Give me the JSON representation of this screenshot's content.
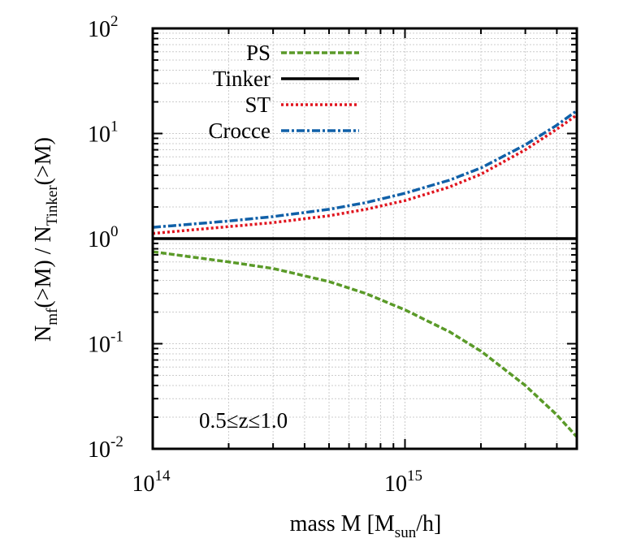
{
  "chart_data": {
    "type": "line",
    "xlabel": {
      "main": "mass M  [M",
      "sub": "sun",
      "tail": "/h]"
    },
    "ylabel": {
      "p1": "N",
      "s1": "mf",
      "p2": "(>M) / N",
      "s2": "Tinker",
      "p3": "(>M)"
    },
    "xscale": "log",
    "yscale": "log",
    "xlim": [
      100000000000000.0,
      4800000000000000.0
    ],
    "ylim": [
      0.01,
      100
    ],
    "xticks": [
      {
        "base": "10",
        "exp": "14",
        "value": 100000000000000.0
      },
      {
        "base": "10",
        "exp": "15",
        "value": 1000000000000000.0
      }
    ],
    "yticks": [
      {
        "base": "10",
        "exp": "-2",
        "value": 0.01
      },
      {
        "base": "10",
        "exp": "-1",
        "value": 0.1
      },
      {
        "base": "10",
        "exp": "0",
        "value": 1
      },
      {
        "base": "10",
        "exp": "1",
        "value": 10
      },
      {
        "base": "10",
        "exp": "2",
        "value": 100
      }
    ],
    "grid": true,
    "legend_position": "top-left",
    "annotation": "0.5≤z≤1.0",
    "series": [
      {
        "name": "PS",
        "color": "#5a9a28",
        "dash": "dashed",
        "x": [
          100000000000000.0,
          200000000000000.0,
          300000000000000.0,
          500000000000000.0,
          700000000000000.0,
          1000000000000000.0,
          1500000000000000.0,
          2000000000000000.0,
          3000000000000000.0,
          4000000000000000.0,
          4800000000000000.0
        ],
        "y": [
          0.75,
          0.6,
          0.52,
          0.39,
          0.3,
          0.21,
          0.13,
          0.085,
          0.04,
          0.021,
          0.013
        ]
      },
      {
        "name": "Tinker",
        "color": "#000000",
        "dash": "solid",
        "x": [
          100000000000000.0,
          4800000000000000.0
        ],
        "y": [
          1,
          1
        ]
      },
      {
        "name": "ST",
        "color": "#e0141e",
        "dash": "dotted",
        "x": [
          100000000000000.0,
          200000000000000.0,
          300000000000000.0,
          500000000000000.0,
          700000000000000.0,
          1000000000000000.0,
          1500000000000000.0,
          2000000000000000.0,
          3000000000000000.0,
          4000000000000000.0,
          4800000000000000.0
        ],
        "y": [
          1.12,
          1.3,
          1.42,
          1.65,
          1.9,
          2.3,
          3.1,
          4.1,
          7.0,
          11.0,
          15.0
        ]
      },
      {
        "name": "Crocce",
        "color": "#1060a8",
        "dash": "dash-dot",
        "x": [
          100000000000000.0,
          200000000000000.0,
          300000000000000.0,
          500000000000000.0,
          700000000000000.0,
          1000000000000000.0,
          1500000000000000.0,
          2000000000000000.0,
          3000000000000000.0,
          4000000000000000.0,
          4800000000000000.0
        ],
        "y": [
          1.28,
          1.47,
          1.62,
          1.9,
          2.2,
          2.7,
          3.6,
          4.7,
          7.8,
          12.0,
          16.5
        ]
      }
    ]
  }
}
